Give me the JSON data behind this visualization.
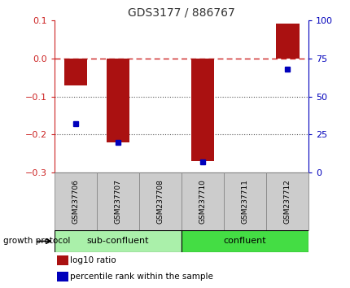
{
  "title": "GDS3177 / 886767",
  "samples": [
    "GSM237706",
    "GSM237707",
    "GSM237708",
    "GSM237710",
    "GSM237711",
    "GSM237712"
  ],
  "log10_ratio": [
    -0.07,
    -0.22,
    0.0,
    -0.27,
    0.0,
    0.09
  ],
  "percentile_rank": [
    32,
    20,
    null,
    7,
    null,
    68
  ],
  "ylim_left": [
    -0.3,
    0.1
  ],
  "ylim_right": [
    0,
    100
  ],
  "groups": [
    {
      "label": "sub-confluent",
      "start": 0,
      "end": 3,
      "color": "#aaf0aa"
    },
    {
      "label": "confluent",
      "start": 3,
      "end": 6,
      "color": "#44dd44"
    }
  ],
  "group_label": "growth protocol",
  "bar_color": "#aa1111",
  "dot_color": "#0000bb",
  "zero_line_color": "#cc2222",
  "dotted_color": "#555555",
  "title_color": "#333333",
  "left_tick_color": "#cc2222",
  "right_tick_color": "#0000bb",
  "bg_color": "#ffffff",
  "sample_bg_color": "#cccccc",
  "sample_edge_color": "#888888"
}
